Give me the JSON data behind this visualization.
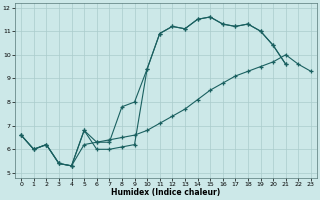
{
  "xlabel": "Humidex (Indice chaleur)",
  "xlim": [
    -0.5,
    23.5
  ],
  "ylim": [
    4.8,
    12.2
  ],
  "xticks": [
    0,
    1,
    2,
    3,
    4,
    5,
    6,
    7,
    8,
    9,
    10,
    11,
    12,
    13,
    14,
    15,
    16,
    17,
    18,
    19,
    20,
    21,
    22,
    23
  ],
  "yticks": [
    5,
    6,
    7,
    8,
    9,
    10,
    11,
    12
  ],
  "bg_color": "#cce8e8",
  "grid_color": "#aacccc",
  "line_color": "#1a6060",
  "line1_x": [
    0,
    1,
    2,
    3,
    4,
    5,
    6,
    7,
    8,
    9,
    10,
    11,
    12,
    13,
    14,
    15,
    16,
    17,
    18,
    19,
    20,
    21
  ],
  "line1_y": [
    6.6,
    6.0,
    6.2,
    5.4,
    5.3,
    6.8,
    6.0,
    6.0,
    6.1,
    6.2,
    9.4,
    10.9,
    11.2,
    11.1,
    11.5,
    11.6,
    11.3,
    11.2,
    11.3,
    11.0,
    10.4,
    9.6
  ],
  "line2_x": [
    0,
    1,
    2,
    3,
    4,
    5,
    6,
    7,
    8,
    9,
    10,
    11,
    12,
    13,
    14,
    15,
    16,
    17,
    18,
    19,
    20,
    21
  ],
  "line2_y": [
    6.6,
    6.0,
    6.2,
    5.4,
    5.3,
    6.8,
    6.3,
    6.3,
    7.8,
    8.0,
    9.4,
    10.9,
    11.2,
    11.1,
    11.5,
    11.6,
    11.3,
    11.2,
    11.3,
    11.0,
    10.4,
    9.6
  ],
  "line3_x": [
    0,
    1,
    2,
    3,
    4,
    5,
    6,
    7,
    8,
    9,
    10,
    11,
    12,
    13,
    14,
    15,
    16,
    17,
    18,
    19,
    20,
    21,
    22,
    23
  ],
  "line3_y": [
    6.6,
    6.0,
    6.2,
    5.4,
    5.3,
    6.2,
    6.3,
    6.4,
    6.5,
    6.6,
    6.8,
    7.1,
    7.4,
    7.7,
    8.1,
    8.5,
    8.8,
    9.1,
    9.3,
    9.5,
    9.7,
    10.0,
    9.6,
    9.3
  ]
}
